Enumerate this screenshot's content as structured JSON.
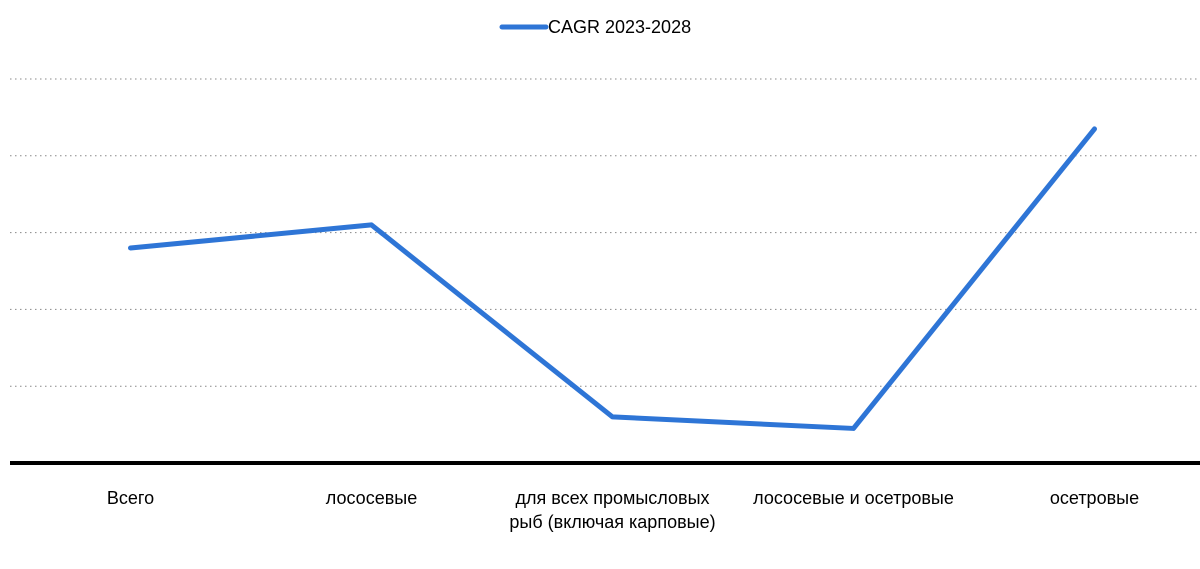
{
  "chart_data": {
    "type": "line",
    "categories": [
      "Всего",
      "лососевые",
      "для всех промысловых рыб (включая карповые)",
      "лососевые и осетровые",
      "осетровые"
    ],
    "series": [
      {
        "name": "CAGR 2023-2028",
        "color": "#2e75d6",
        "values": [
          2.8,
          3.1,
          0.6,
          0.45,
          4.35
        ]
      }
    ],
    "ylim": [
      0,
      5
    ],
    "yticks": [
      0,
      1,
      2,
      3,
      4,
      5
    ],
    "grid": true,
    "legend": "top"
  }
}
